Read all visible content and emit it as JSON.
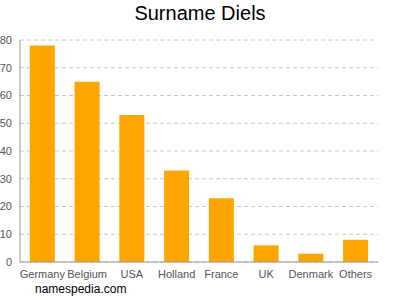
{
  "chart_data": {
    "type": "bar",
    "title": "Surname Diels",
    "categories": [
      "Germany",
      "Belgium",
      "USA",
      "Holland",
      "France",
      "UK",
      "Denmark",
      "Others"
    ],
    "values": [
      78,
      65,
      53,
      33,
      23,
      6,
      3,
      8
    ],
    "color": "#ffa500",
    "ylim": [
      0,
      80
    ],
    "yticks": [
      0,
      10,
      20,
      30,
      40,
      50,
      60,
      70,
      80
    ],
    "grid": true,
    "annotations": [
      "namespedia.com"
    ]
  }
}
